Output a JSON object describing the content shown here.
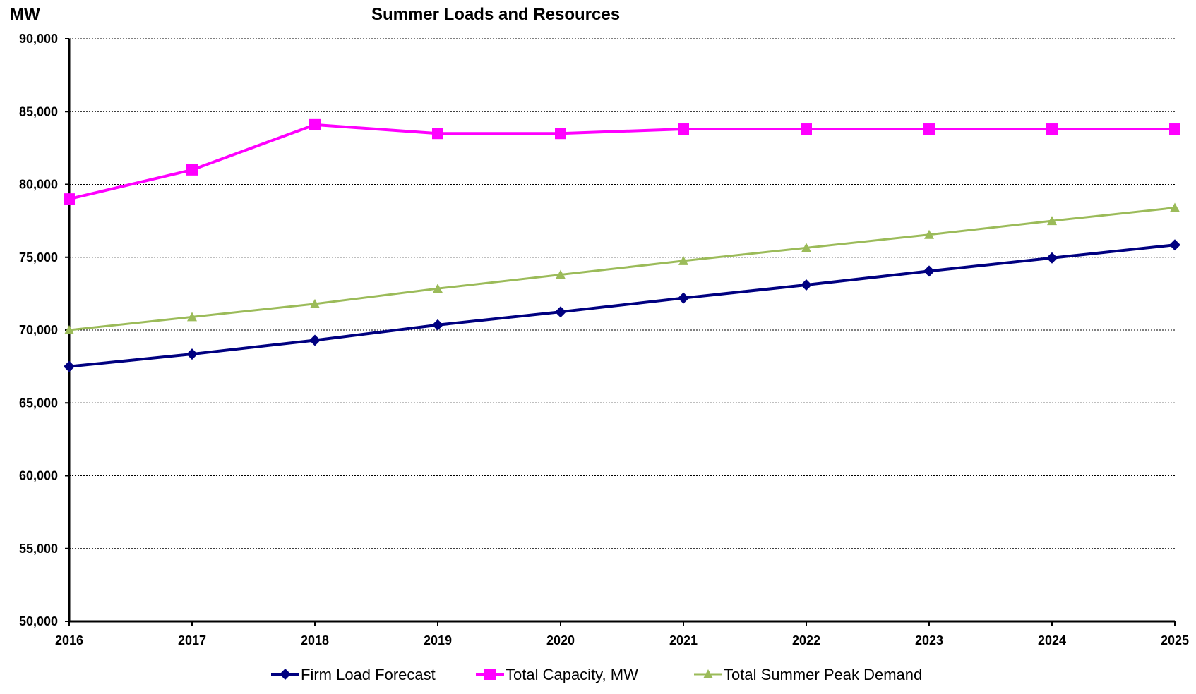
{
  "chart_data": {
    "type": "line",
    "title": "Summer Loads and Resources",
    "ylabel": "MW",
    "xlabel": "",
    "categories": [
      "2016",
      "2017",
      "2018",
      "2019",
      "2020",
      "2021",
      "2022",
      "2023",
      "2024",
      "2025"
    ],
    "ylim": [
      50000,
      90000
    ],
    "yticks": [
      50000,
      55000,
      60000,
      65000,
      70000,
      75000,
      80000,
      85000,
      90000
    ],
    "ytick_labels": [
      "50,000",
      "55,000",
      "60,000",
      "65,000",
      "70,000",
      "75,000",
      "80,000",
      "85,000",
      "90,000"
    ],
    "grid": "horizontal dashed",
    "legend_position": "bottom",
    "series": [
      {
        "name": "Firm Load Forecast",
        "color": "#000080",
        "marker": "diamond",
        "values": [
          67500,
          68350,
          69300,
          70350,
          71250,
          72200,
          73100,
          74050,
          74950,
          75850
        ]
      },
      {
        "name": "Total Capacity, MW",
        "color": "#ff00ff",
        "marker": "square",
        "values": [
          79000,
          81000,
          84100,
          83500,
          83500,
          83800,
          83800,
          83800,
          83800,
          83800
        ]
      },
      {
        "name": "Total Summer Peak Demand",
        "color": "#9bbb59",
        "marker": "triangle",
        "values": [
          70000,
          70900,
          71800,
          72850,
          73800,
          74750,
          75650,
          76550,
          77500,
          78400
        ]
      }
    ]
  }
}
